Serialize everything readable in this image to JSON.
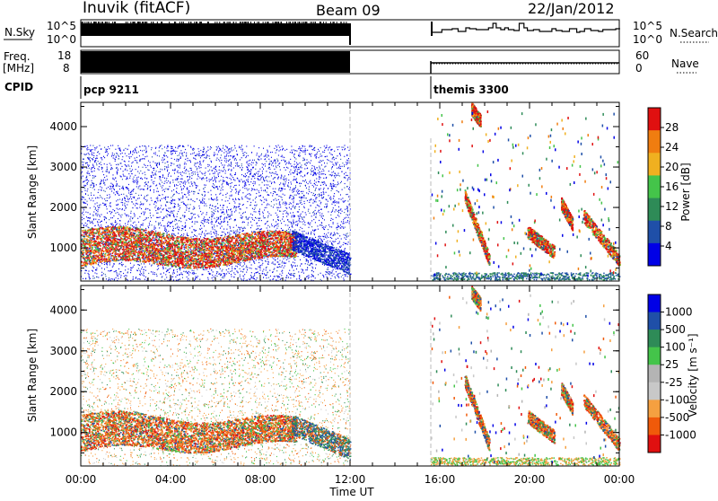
{
  "header": {
    "station": "Inuvik (fitACF)",
    "beam": "Beam 09",
    "date": "22/Jan/2012"
  },
  "labels": {
    "nsky": "N.Sky",
    "freq_line1": "Freq.",
    "freq_line2": "[MHz]",
    "cpid": "CPID",
    "nsearch": "N.Search",
    "nave": "Nave",
    "nsky_top": "10^5",
    "nsky_bottom": "10^0",
    "freq_top": "18",
    "freq_bottom": "8",
    "nsearch_top": "10^5",
    "nsearch_bottom": "10^0",
    "nave_top": "60",
    "nave_bottom": "0"
  },
  "cpid_segments": [
    {
      "start_hour": 0,
      "label": "pcp 9211"
    },
    {
      "start_hour": 15.6,
      "label": "themis 3300"
    }
  ],
  "colors": {
    "power": [
      "#0000e6",
      "#1f4fa8",
      "#2e8b57",
      "#44c44a",
      "#f0b020",
      "#f07d10",
      "#e01010"
    ],
    "velocity": [
      "#e01010",
      "#f05a0a",
      "#f5a040",
      "#c8c8c8",
      "#b4b4b4",
      "#44c44a",
      "#2e8b57",
      "#1f4fa8",
      "#0000e6"
    ]
  },
  "chart_data": [
    {
      "type": "heatmap",
      "name": "power",
      "xlabel": "",
      "ylabel": "Slant Range [km]",
      "x_domain_hours": [
        0,
        24
      ],
      "ylim": [
        180,
        4600
      ],
      "y_ticks": [
        1000,
        2000,
        3000,
        4000
      ],
      "data_gap_hours": [
        12,
        15.6
      ],
      "colorbar": {
        "label": "Power [dB]",
        "ticks": [
          4,
          8,
          12,
          16,
          20,
          24,
          28
        ],
        "range": [
          0,
          32
        ]
      }
    },
    {
      "type": "heatmap",
      "name": "velocity",
      "xlabel": "Time UT",
      "ylabel": "Slant Range [km]",
      "x_domain_hours": [
        0,
        24
      ],
      "x_ticks": [
        "00:00",
        "04:00",
        "08:00",
        "12:00",
        "16:00",
        "20:00",
        "00:00"
      ],
      "ylim": [
        180,
        4600
      ],
      "y_ticks": [
        1000,
        2000,
        3000,
        4000
      ],
      "data_gap_hours": [
        12,
        15.6
      ],
      "colorbar": {
        "label": "Velocity [m s⁻¹]",
        "ticks": [
          "1000",
          "500",
          "100",
          "25",
          "-25",
          "-100",
          "-500",
          "-1000"
        ]
      }
    }
  ]
}
